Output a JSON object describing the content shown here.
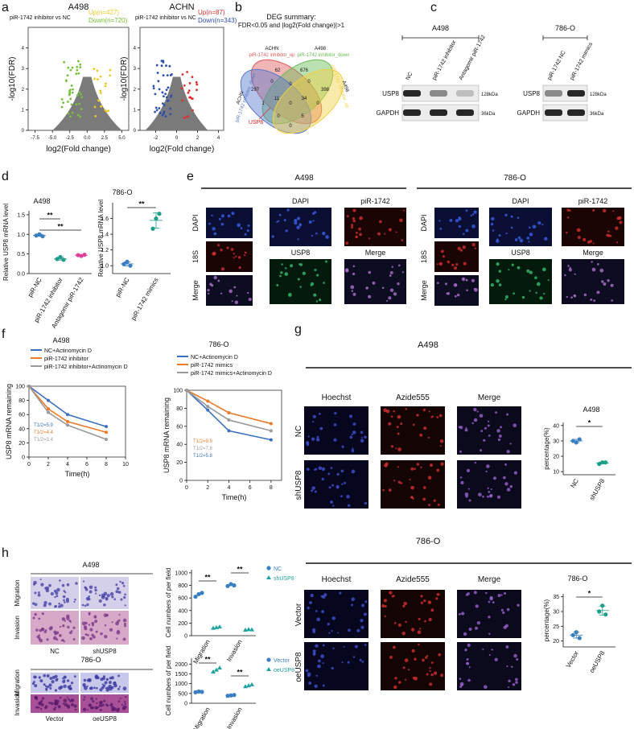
{
  "panel_a": {
    "letter": "a",
    "plots": [
      {
        "title": "A498",
        "comparison": "piR-1742 inhibitor vs NC",
        "up_label": "Up(n=427)",
        "down_label": "Down(n=720)",
        "up_color": "#ecc82a",
        "down_color": "#78bf3f",
        "xlabel": "log2(Fold change)",
        "ylabel": "-log10(FDR)",
        "xlim": [
          -8.5,
          6
        ],
        "xticks": [
          -7.5,
          {
            "value": -5,
            "label": "-5.0"
          },
          -2.5,
          {
            "value": 0,
            "label": "0.0"
          },
          2.5,
          {
            "value": 5,
            "label": "5.0"
          }
        ],
        "ylim": [
          0,
          5
        ],
        "yticks": [
          0,
          1,
          2,
          3,
          4
        ]
      },
      {
        "title": "ACHN",
        "comparison": "piR-1742 inhibitor vs NC",
        "up_label": "Up(n=87)",
        "down_label": "Down(n=343)",
        "up_color": "#dd3030",
        "down_color": "#2f4fae",
        "xlabel": "log2(Fold change)",
        "ylabel": "-log10(FDR)",
        "xlim": [
          -3.5,
          4.5
        ],
        "xticks": [
          -2,
          0,
          2,
          4
        ],
        "ylim": [
          0,
          5
        ],
        "yticks": [
          0,
          1,
          2,
          3,
          4
        ]
      }
    ]
  },
  "panel_b": {
    "letter": "b",
    "title": "DEG summary:",
    "criteria": "FDR<0.05 and |log2(Fold change)|>1",
    "sets": [
      {
        "cell": "ACHN",
        "group": "piR-1742 inhibitor_up",
        "color": "#e05a5a"
      },
      {
        "cell": "A498",
        "group": "piR-1742 inhibitor_down",
        "color": "#69bb55"
      },
      {
        "cell": "ACHN",
        "group": "piR-1742 inhibitor_down",
        "color": "#5677cc"
      },
      {
        "cell": "A498",
        "group": "piR-1742 inhibitor_up",
        "color": "#f0d040"
      }
    ],
    "counts": [
      62,
      676,
      297,
      0,
      0,
      0,
      398,
      1,
      11,
      0,
      34,
      0,
      0,
      0,
      5
    ],
    "highlight": "USP8"
  },
  "panel_c": {
    "letter": "c",
    "blots": [
      {
        "cell": "A498",
        "lanes": [
          "NC",
          "piR-1742 inhibitor",
          "Antagomir piR-1742"
        ],
        "proteins": [
          "USP8",
          "GAPDH"
        ],
        "sizes": [
          "128kDa",
          "36kDa"
        ]
      },
      {
        "cell": "786-O",
        "lanes": [
          "piR-1742 NC",
          "piR-1742 mimics"
        ],
        "proteins": [
          "USP8",
          "GAPDH"
        ],
        "sizes": [
          "128kDa",
          "36kDa"
        ]
      }
    ]
  },
  "panel_d": {
    "letter": "d",
    "charts": [
      {
        "title": "A498",
        "ylabel": "Relative USP8 mRNA level",
        "categories": [
          "piR-NC",
          "piR-1742 inhibitor",
          "Antagomir piR-1742"
        ],
        "colors": [
          "#3a7fc1",
          "#1f9e89",
          "#e0409a"
        ],
        "values": [
          [
            0.97,
            1.0,
            0.95
          ],
          [
            0.37,
            0.42,
            0.35
          ],
          [
            0.47,
            0.45,
            0.48
          ]
        ],
        "ylim": [
          0,
          1.6
        ],
        "yticks": [
          {
            "value": 0,
            "label": "0.0"
          },
          0.5,
          {
            "value": 1,
            "label": "1.0"
          },
          1.5
        ],
        "significance": [
          "**",
          "**"
        ]
      },
      {
        "title": "786-O",
        "ylabel": "Relative USP8 mRNA level",
        "categories": [
          "piR-NC",
          "piR-1742 mimics"
        ],
        "colors": [
          "#3a7fc1",
          "#1f9e89"
        ],
        "values": [
          [
            1.02,
            1.05,
            1.0
          ],
          [
            1.47,
            1.6,
            1.66
          ]
        ],
        "ylim": [
          0.9,
          1.8
        ],
        "yticks": [
          {
            "value": 1,
            "label": "1.0"
          },
          1.2,
          1.4,
          1.6
        ],
        "significance": [
          "**"
        ]
      }
    ]
  },
  "panel_e": {
    "letter": "e",
    "groups": [
      {
        "cell": "A498",
        "stains": [
          "DAPI",
          "piR-1742",
          "USP8",
          "Merge"
        ],
        "rows": [
          "DAPI",
          "18S",
          "Merge"
        ]
      },
      {
        "cell": "786-O",
        "stains": [
          "DAPI",
          "piR-1742",
          "USP8",
          "Merge"
        ],
        "rows": [
          "DAPI",
          "18S",
          "Merge"
        ]
      }
    ]
  },
  "panel_f": {
    "letter": "f",
    "charts": [
      {
        "title": "A498",
        "xlabel": "Time(h)",
        "ylabel": "USP8 mRNA remaining",
        "x": [
          0,
          2,
          4,
          8
        ],
        "xlim": [
          0,
          10
        ],
        "xticks": [
          0,
          2,
          4,
          6,
          8,
          10
        ],
        "ylim": [
          0,
          100
        ],
        "yticks": [
          0,
          20,
          40,
          60,
          80,
          100
        ],
        "series": [
          {
            "name": "NC+Actinomycin D",
            "color": "#3b6fc4",
            "values": [
              100,
              80,
              60,
              43
            ],
            "annotation": "T1/2=5.9"
          },
          {
            "name": "piR-1742 inhibitor",
            "color": "#ec7a26",
            "values": [
              100,
              68,
              50,
              35
            ],
            "annotation": "T1/2=4.4"
          },
          {
            "name": "piR-1742 inhibitor+Actinomycin D",
            "color": "#9a9a9a",
            "values": [
              100,
              63,
              45,
              25
            ],
            "annotation": "T1/2=3.4"
          }
        ]
      },
      {
        "title": "786-O",
        "xlabel": "Time(h)",
        "ylabel": "USP8 mRNA remaining",
        "x": [
          0,
          2,
          4,
          8
        ],
        "xlim": [
          0,
          9
        ],
        "xticks": [
          0,
          2,
          4,
          6,
          8
        ],
        "ylim": [
          0,
          100
        ],
        "yticks": [
          0,
          20,
          40,
          60,
          80,
          100
        ],
        "series": [
          {
            "name": "NC+Actinomycin D",
            "color": "#3b6fc4",
            "values": [
              100,
              78,
              55,
              45
            ],
            "annotation": "T1/2=5.8"
          },
          {
            "name": "piR-1742 mimics",
            "color": "#ec7a26",
            "values": [
              100,
              88,
              75,
              63
            ],
            "annotation": "T1/2=9.9"
          },
          {
            "name": "piR-1742 mimics+Actinomycin D",
            "color": "#9a9a9a",
            "values": [
              100,
              82,
              67,
              55
            ],
            "annotation": "T1/2=7.8"
          }
        ]
      }
    ]
  },
  "panel_g": {
    "letter": "g",
    "groups": [
      {
        "cell": "A498",
        "stains": [
          "Hoechst",
          "Azide555",
          "Merge"
        ],
        "rows": [
          "NC",
          "shUSP8"
        ],
        "chart": {
          "title": "A498",
          "ylabel": "percentage(%)",
          "categories": [
            "NC",
            "shUSP8"
          ],
          "colors": [
            "#3a7fc1",
            "#1f9e89"
          ],
          "values": [
            [
              30,
              29,
              31
            ],
            [
              15,
              16,
              16
            ]
          ],
          "ylim": [
            8,
            42
          ],
          "yticks": [
            10,
            20,
            30,
            40
          ],
          "significance": [
            "*"
          ]
        }
      },
      {
        "cell": "786-O",
        "stains": [
          "Hoechst",
          "Azide555",
          "Merge"
        ],
        "rows": [
          "Vector",
          "oeUSP8"
        ],
        "chart": {
          "title": "786-O",
          "ylabel": "percentage(%)",
          "categories": [
            "Vector",
            "oeUSP8"
          ],
          "colors": [
            "#3a7fc1",
            "#1f9e89"
          ],
          "values": [
            [
              22,
              23,
              21
            ],
            [
              30,
              32,
              29
            ]
          ],
          "ylim": [
            18,
            36
          ],
          "yticks": [
            20,
            25,
            30,
            35
          ],
          "significance": [
            "*"
          ]
        }
      }
    ]
  },
  "panel_h": {
    "letter": "h",
    "groups": [
      {
        "cell": "A498",
        "rows": [
          "Migration",
          "Invasion"
        ],
        "columns": [
          "NC",
          "shUSP8"
        ],
        "chart": {
          "ylabel": "Cell numbers of per field",
          "categories": [
            "Migration",
            "Invasion"
          ],
          "ylim": [
            0,
            1050
          ],
          "yticks": [
            0,
            200,
            400,
            600,
            800,
            1000
          ],
          "series": [
            {
              "name": "NC",
              "color": "#3a7fc1",
              "marker": "circle",
              "values": [
                [
                  620,
                  660,
                  680
                ],
                [
                  790,
                  820,
                  800
                ]
              ]
            },
            {
              "name": "shUSP8",
              "color": "#20a39e",
              "marker": "triangle",
              "values": [
                [
                  120,
                  130,
                  140
                ],
                [
                  90,
                  100,
                  95
                ]
              ]
            }
          ],
          "significance": [
            "**",
            "**"
          ]
        }
      },
      {
        "cell": "786-O",
        "rows": [
          "Migration",
          "Invasion"
        ],
        "columns": [
          "Vector",
          "oeUSP8"
        ],
        "chart": {
          "ylabel": "Cell numbers of per field",
          "categories": [
            "Migration",
            "Invasion"
          ],
          "ylim": [
            0,
            2300
          ],
          "yticks": [
            0,
            500,
            1000,
            1500,
            2000
          ],
          "series": [
            {
              "name": "Vector",
              "color": "#3a7fc1",
              "marker": "circle",
              "values": [
                [
                  560,
                  600,
                  580
                ],
                [
                  380,
                  400,
                  420
                ]
              ]
            },
            {
              "name": "oeUSP8",
              "color": "#20a39e",
              "marker": "triangle",
              "values": [
                [
                  1600,
                  1700,
                  1800
                ],
                [
                  850,
                  900,
                  950
                ]
              ]
            }
          ],
          "significance": [
            "**",
            "**"
          ]
        }
      }
    ]
  }
}
